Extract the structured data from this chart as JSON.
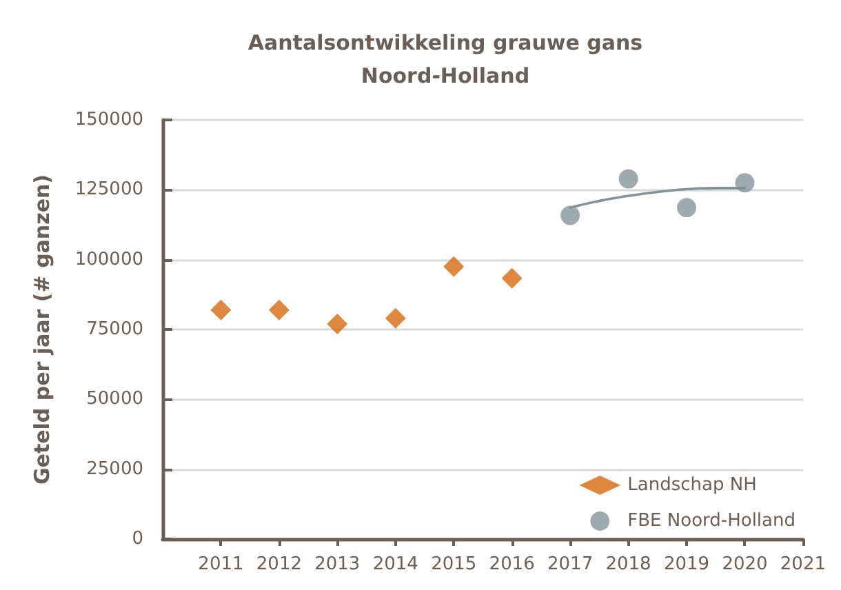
{
  "chart_data": {
    "type": "scatter",
    "title": "Aantalsontwikkeling grauwe gans\nNoord-Holland",
    "ylabel": "Geteld per jaar (# ganzen)",
    "xlim": [
      2010,
      2021
    ],
    "xticks": [
      2011,
      2012,
      2013,
      2014,
      2015,
      2016,
      2017,
      2018,
      2019,
      2020,
      2021
    ],
    "ylim": [
      0,
      150000
    ],
    "yticks": [
      0,
      25000,
      50000,
      75000,
      100000,
      125000,
      150000
    ],
    "grid": "y",
    "legend": "bottom right",
    "series": [
      {
        "name": "Landschap NH",
        "color": "#d4690f",
        "marker": "diamond",
        "x": [
          2011,
          2012,
          2013,
          2014,
          2015,
          2016
        ],
        "values": [
          82000,
          82000,
          77000,
          79000,
          97500,
          93300
        ]
      },
      {
        "name": "FBE Noord-Holland",
        "color": "#84959a",
        "marker": "circle",
        "x": [
          2017,
          2018,
          2019,
          2020
        ],
        "values": [
          115800,
          128900,
          118600,
          127500
        ]
      },
      {
        "type": "line",
        "color": "#7f9399",
        "marker": "none",
        "x": [
          2017,
          2017.5,
          2018,
          2018.5,
          2019,
          2019.5,
          2020
        ],
        "values": [
          118600,
          121000,
          122800,
          124200,
          125200,
          125600,
          125600
        ]
      }
    ]
  }
}
